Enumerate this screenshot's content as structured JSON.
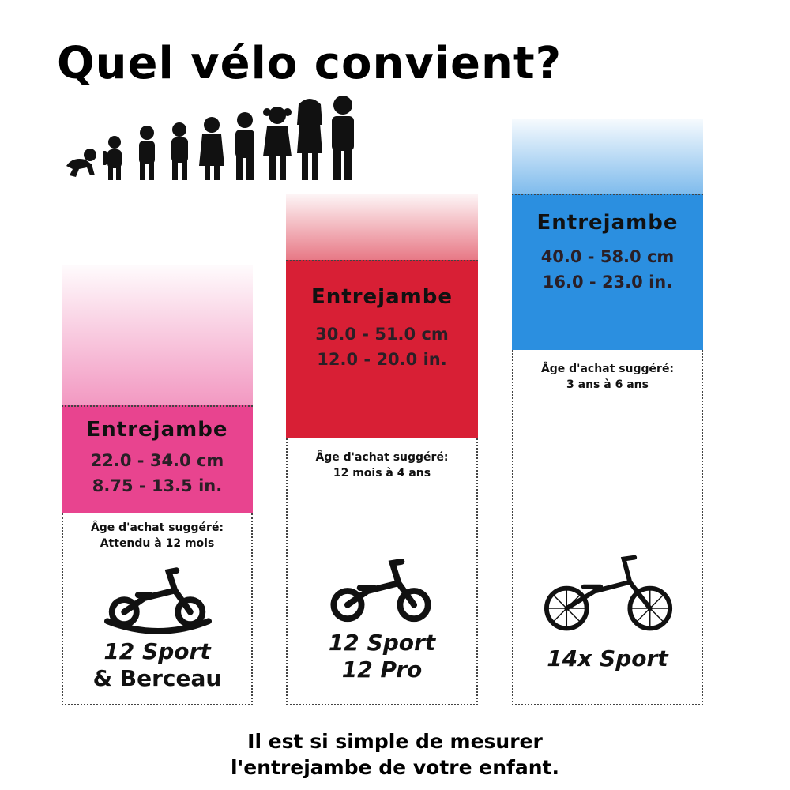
{
  "title": "Quel vélo convient?",
  "columns": [
    {
      "id": "pink",
      "color": "#e8448f",
      "label": "Entrejambe",
      "cm": "22.0 - 34.0 cm",
      "in": "8.75 - 13.5 in.",
      "age_label": "Âge d'achat suggéré:",
      "age_value": "Attendu à 12 mois",
      "model_line1": "12 Sport",
      "model_line2": "& Berceau"
    },
    {
      "id": "red",
      "color": "#d81f35",
      "label": "Entrejambe",
      "cm": "30.0 - 51.0 cm",
      "in": "12.0 - 20.0 in.",
      "age_label": "Âge d'achat suggéré:",
      "age_value": "12 mois à 4 ans",
      "model_line1": "12 Sport",
      "model_line2": "12 Pro"
    },
    {
      "id": "blue",
      "color": "#2b8fe0",
      "label": "Entrejambe",
      "cm": "40.0 - 58.0 cm",
      "in": "16.0 - 23.0 in.",
      "age_label": "Âge d'achat suggéré:",
      "age_value": "3 ans à 6 ans",
      "model_line1": "14x Sport"
    }
  ],
  "footer_line1": "Il est si simple de mesurer",
  "footer_line2": "l'entrejambe de votre enfant.",
  "icons": [
    "child-silhouettes-icon",
    "balance-bike-rocker-icon",
    "balance-bike-icon"
  ]
}
